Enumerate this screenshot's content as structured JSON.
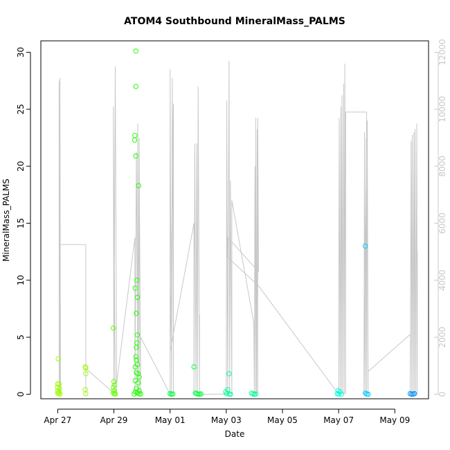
{
  "chart_data": {
    "type": "scatter",
    "title": "ATOM4 Southbound MineralMass_PALMS",
    "xlabel": "Date",
    "ylabel": "MineralMass_PALMS",
    "x_ticks": [
      "Apr 27",
      "Apr 29",
      "May 01",
      "May 03",
      "May 05",
      "May 07",
      "May 09"
    ],
    "x_tick_days": [
      0,
      2,
      4,
      6,
      8,
      10,
      12
    ],
    "xlim": [
      -0.6,
      13.2
    ],
    "ylim": [
      -0.4,
      31
    ],
    "y_ticks": [
      0,
      5,
      10,
      15,
      20,
      25,
      30
    ],
    "y2lim": [
      -160,
      12400
    ],
    "y2_ticks": [
      0,
      2000,
      4000,
      6000,
      8000,
      10000,
      12000
    ],
    "y2_label": "",
    "grid": false,
    "legend": "none",
    "colors": {
      "secondary_line": "#c8c8c8",
      "axes": "#000000",
      "palette": [
        "#9cff00",
        "#66ff00",
        "#22ff00",
        "#00ff40",
        "#00ff99",
        "#00ffe0",
        "#00ccff",
        "#0090ff"
      ]
    },
    "points": [
      [
        0.02,
        3.1,
        0
      ],
      [
        0.0,
        0.9,
        0
      ],
      [
        0.05,
        0.9,
        0
      ],
      [
        0.0,
        0.6,
        0
      ],
      [
        0.07,
        0.5,
        0
      ],
      [
        0.0,
        0.3,
        0
      ],
      [
        0.05,
        0.2,
        0
      ],
      [
        0.0,
        0.1,
        0
      ],
      [
        0.04,
        0.05,
        0
      ],
      [
        0.08,
        0.02,
        0
      ],
      [
        0.98,
        2.4,
        0
      ],
      [
        1.0,
        2.3,
        0
      ],
      [
        1.0,
        1.8,
        0
      ],
      [
        0.98,
        0.4,
        0
      ],
      [
        1.0,
        0.05,
        0
      ],
      [
        1.98,
        5.8,
        1
      ],
      [
        2.0,
        1.1,
        1
      ],
      [
        2.02,
        0.8,
        1
      ],
      [
        1.98,
        0.6,
        1
      ],
      [
        2.0,
        0.3,
        1
      ],
      [
        1.98,
        0.1,
        1
      ],
      [
        2.02,
        0.05,
        1
      ],
      [
        2.05,
        0.02,
        1
      ],
      [
        2.78,
        30.1,
        2
      ],
      [
        2.78,
        27.0,
        2
      ],
      [
        2.75,
        22.7,
        2
      ],
      [
        2.74,
        22.3,
        2
      ],
      [
        2.78,
        20.9,
        2
      ],
      [
        2.88,
        18.3,
        2
      ],
      [
        2.76,
        9.3,
        2
      ],
      [
        2.82,
        10.0,
        2
      ],
      [
        2.84,
        8.5,
        2
      ],
      [
        2.8,
        7.1,
        2
      ],
      [
        2.84,
        5.2,
        2
      ],
      [
        2.82,
        4.5,
        2
      ],
      [
        2.8,
        4.1,
        2
      ],
      [
        2.78,
        3.3,
        2
      ],
      [
        2.8,
        3.0,
        2
      ],
      [
        2.84,
        2.6,
        2
      ],
      [
        2.76,
        2.4,
        2
      ],
      [
        2.8,
        1.9,
        2
      ],
      [
        2.86,
        1.8,
        2
      ],
      [
        2.9,
        1.5,
        2
      ],
      [
        2.76,
        1.2,
        2
      ],
      [
        2.86,
        1.0,
        2
      ],
      [
        2.8,
        0.5,
        2
      ],
      [
        2.9,
        0.3,
        2
      ],
      [
        2.76,
        0.2,
        2
      ],
      [
        2.84,
        0.1,
        2
      ],
      [
        2.9,
        0.05,
        2
      ],
      [
        2.72,
        0.02,
        2
      ],
      [
        2.95,
        0.02,
        2
      ],
      [
        4.0,
        0.05,
        3
      ],
      [
        4.05,
        0.0,
        3
      ],
      [
        4.1,
        0.02,
        3
      ],
      [
        4.85,
        2.4,
        3
      ],
      [
        4.9,
        0.1,
        3
      ],
      [
        4.95,
        0.05,
        3
      ],
      [
        5.0,
        0.02,
        3
      ],
      [
        5.05,
        0.0,
        3
      ],
      [
        5.1,
        0.03,
        3
      ],
      [
        6.1,
        1.8,
        4
      ],
      [
        6.05,
        0.4,
        4
      ],
      [
        5.98,
        0.2,
        4
      ],
      [
        6.02,
        0.05,
        4
      ],
      [
        6.1,
        0.02,
        4
      ],
      [
        6.15,
        0.0,
        4
      ],
      [
        6.9,
        0.1,
        4
      ],
      [
        6.95,
        0.03,
        4
      ],
      [
        7.0,
        0.0,
        4
      ],
      [
        7.05,
        0.02,
        4
      ],
      [
        9.98,
        0.3,
        5
      ],
      [
        10.05,
        0.2,
        5
      ],
      [
        9.95,
        0.05,
        5
      ],
      [
        10.0,
        0.02,
        5
      ],
      [
        10.1,
        0.0,
        5
      ],
      [
        10.95,
        13.0,
        6
      ],
      [
        10.95,
        0.1,
        6
      ],
      [
        11.0,
        0.02,
        6
      ],
      [
        11.05,
        0.0,
        6
      ],
      [
        12.55,
        0.05,
        7
      ],
      [
        12.6,
        0.0,
        7
      ],
      [
        12.65,
        0.02,
        7
      ],
      [
        12.7,
        0.05,
        7
      ]
    ],
    "secondary_series": [
      [
        0.05,
        0
      ],
      [
        0.05,
        11000
      ],
      [
        0.08,
        0
      ],
      [
        0.08,
        11100
      ],
      [
        0.1,
        0
      ],
      [
        0.05,
        5250
      ],
      [
        1.0,
        5250
      ],
      [
        1.0,
        0
      ],
      [
        1.0,
        900
      ],
      [
        2.05,
        0
      ],
      [
        1.98,
        10100
      ],
      [
        2.0,
        0
      ],
      [
        2.05,
        11500
      ],
      [
        2.1,
        0
      ],
      [
        2.1,
        400
      ],
      [
        2.75,
        5500
      ],
      [
        2.75,
        0
      ],
      [
        2.8,
        8500
      ],
      [
        2.85,
        0
      ],
      [
        2.85,
        9500
      ],
      [
        2.9,
        0
      ],
      [
        2.9,
        9000
      ],
      [
        2.95,
        0
      ],
      [
        2.95,
        2000
      ],
      [
        4.0,
        0
      ],
      [
        4.0,
        11400
      ],
      [
        4.05,
        0
      ],
      [
        4.08,
        11100
      ],
      [
        4.12,
        0
      ],
      [
        4.12,
        10200
      ],
      [
        4.0,
        1500
      ],
      [
        4.85,
        6000
      ],
      [
        4.85,
        0
      ],
      [
        4.88,
        8800
      ],
      [
        4.92,
        0
      ],
      [
        4.95,
        8800
      ],
      [
        4.98,
        0
      ],
      [
        5.0,
        10800
      ],
      [
        5.05,
        0
      ],
      [
        5.05,
        2800
      ],
      [
        5.05,
        0
      ],
      [
        6.0,
        0
      ],
      [
        6.02,
        10300
      ],
      [
        6.05,
        0
      ],
      [
        6.1,
        11700
      ],
      [
        6.12,
        0
      ],
      [
        6.15,
        7500
      ],
      [
        6.2,
        0
      ],
      [
        6.2,
        6800
      ],
      [
        6.98,
        2500
      ],
      [
        7.0,
        0
      ],
      [
        7.02,
        8000
      ],
      [
        7.05,
        0
      ],
      [
        7.05,
        9700
      ],
      [
        7.08,
        0
      ],
      [
        7.1,
        9300
      ],
      [
        7.12,
        0
      ],
      [
        7.12,
        9700
      ],
      [
        7.15,
        4300
      ],
      [
        6.05,
        5500
      ],
      [
        6.05,
        4800
      ],
      [
        7.15,
        3800
      ],
      [
        10.0,
        0
      ],
      [
        10.02,
        9700
      ],
      [
        10.05,
        0
      ],
      [
        10.08,
        10100
      ],
      [
        10.1,
        0
      ],
      [
        10.12,
        10500
      ],
      [
        10.15,
        0
      ],
      [
        10.18,
        10900
      ],
      [
        10.2,
        0
      ],
      [
        10.22,
        11600
      ],
      [
        10.25,
        0
      ],
      [
        10.25,
        9900
      ],
      [
        11.0,
        9900
      ],
      [
        10.9,
        0
      ],
      [
        10.92,
        9200
      ],
      [
        10.95,
        0
      ],
      [
        10.98,
        9000
      ],
      [
        11.0,
        0
      ],
      [
        11.02,
        9600
      ],
      [
        11.05,
        0
      ],
      [
        11.05,
        800
      ],
      [
        12.55,
        2100
      ],
      [
        12.55,
        0
      ],
      [
        12.58,
        8900
      ],
      [
        12.6,
        0
      ],
      [
        12.62,
        9100
      ],
      [
        12.65,
        0
      ],
      [
        12.68,
        9200
      ],
      [
        12.7,
        0
      ],
      [
        12.72,
        9300
      ],
      [
        12.75,
        0
      ],
      [
        12.78,
        9500
      ],
      [
        12.8,
        0
      ],
      [
        12.8,
        5000
      ]
    ]
  }
}
